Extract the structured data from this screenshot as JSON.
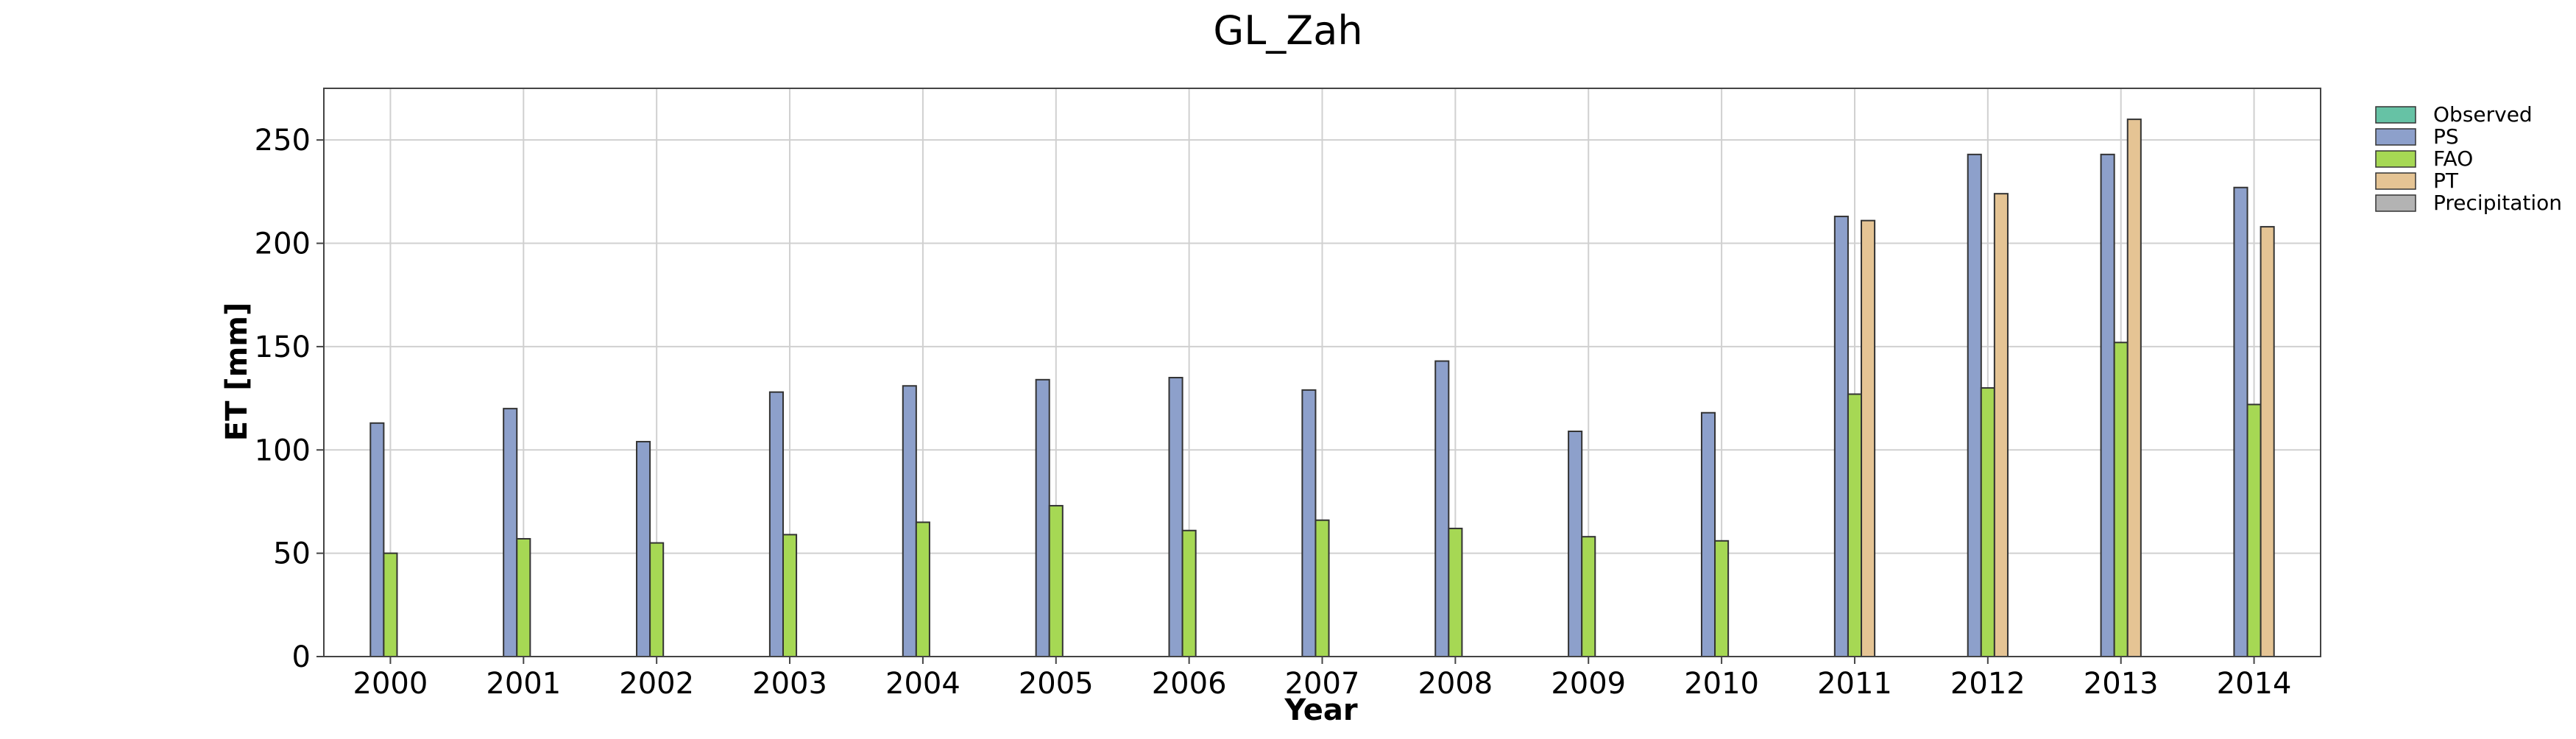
{
  "chart_data": {
    "type": "bar",
    "title": "GL_Zah",
    "xlabel": "Year",
    "ylabel": "ET [mm]",
    "categories": [
      "2000",
      "2001",
      "2002",
      "2003",
      "2004",
      "2005",
      "2006",
      "2007",
      "2008",
      "2009",
      "2010",
      "2011",
      "2012",
      "2013",
      "2014"
    ],
    "ylim": [
      0,
      275
    ],
    "yticks": [
      0,
      50,
      100,
      150,
      200,
      250
    ],
    "grid": true,
    "legend_position": "outside right, top",
    "series": [
      {
        "name": "Observed",
        "color": "#66c2a5",
        "values": [
          0,
          0,
          0,
          0,
          0,
          0,
          0,
          0,
          0,
          0,
          0,
          0,
          0,
          0,
          0
        ]
      },
      {
        "name": "PS",
        "color": "#8da0cb",
        "values": [
          113,
          120,
          104,
          128,
          131,
          134,
          135,
          129,
          143,
          109,
          118,
          213,
          243,
          243,
          227
        ]
      },
      {
        "name": "FAO",
        "color": "#a6d854",
        "values": [
          50,
          57,
          55,
          59,
          65,
          73,
          61,
          66,
          62,
          58,
          56,
          127,
          130,
          152,
          122
        ]
      },
      {
        "name": "PT",
        "color": "#e5c494",
        "values": [
          0,
          0,
          0,
          0,
          0,
          0,
          0,
          0,
          0,
          0,
          0,
          211,
          224,
          260,
          208
        ]
      },
      {
        "name": "Precipitation",
        "color": "#b3b3b3",
        "values": [
          0,
          0,
          0,
          0,
          0,
          0,
          0,
          0,
          0,
          0,
          0,
          0,
          0,
          0,
          0
        ]
      }
    ]
  }
}
